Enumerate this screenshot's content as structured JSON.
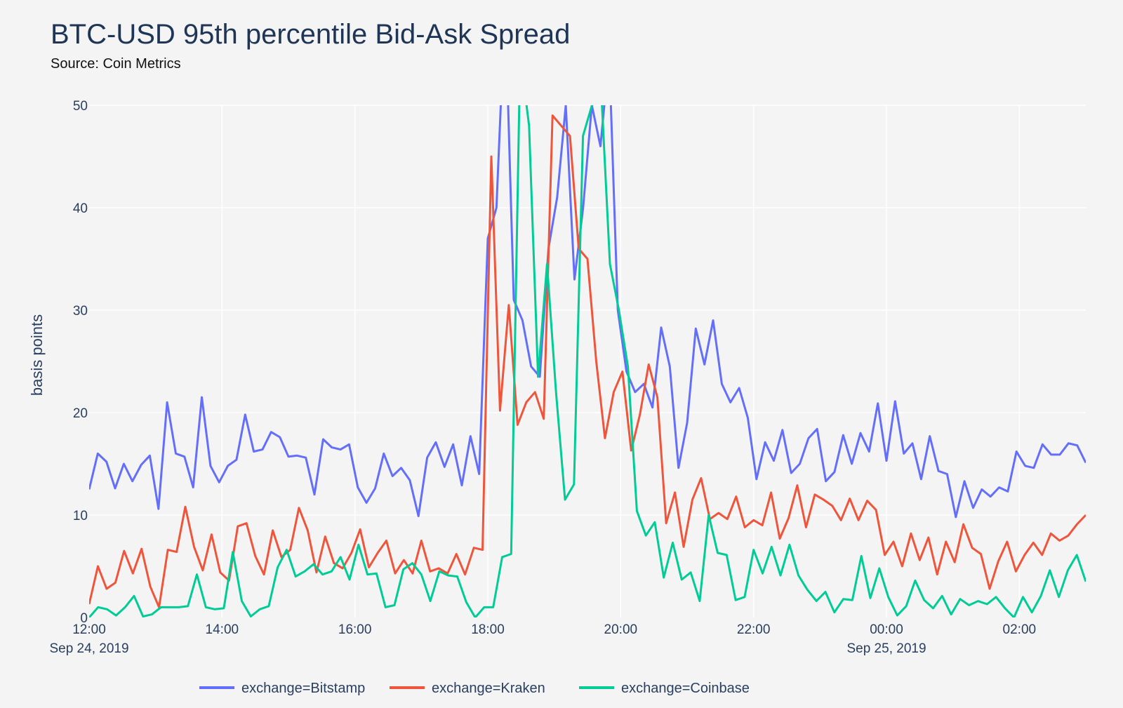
{
  "chart_data": {
    "type": "line",
    "title": "BTC-USD 95th percentile Bid-Ask Spread",
    "subtitle": "Source: Coin Metrics",
    "xlabel": "",
    "ylabel": "basis points",
    "x_start": "2019-09-24 12:00",
    "x_end": "2019-09-25 03:00",
    "x_step": "10min",
    "ylim": [
      0,
      50
    ],
    "y_ticks": [
      "0",
      "10",
      "20",
      "30",
      "40",
      "50"
    ],
    "x_ticks": [
      {
        "label": "12:00",
        "date": "Sep 24, 2019",
        "x": "2019-09-24 12:00"
      },
      {
        "label": "14:00",
        "date": "",
        "x": "2019-09-24 14:00"
      },
      {
        "label": "16:00",
        "date": "",
        "x": "2019-09-24 16:00"
      },
      {
        "label": "18:00",
        "date": "",
        "x": "2019-09-24 18:00"
      },
      {
        "label": "20:00",
        "date": "",
        "x": "2019-09-24 20:00"
      },
      {
        "label": "22:00",
        "date": "",
        "x": "2019-09-24 22:00"
      },
      {
        "label": "00:00",
        "date": "Sep 25, 2019",
        "x": "2019-09-25 00:00"
      },
      {
        "label": "02:00",
        "date": "",
        "x": "2019-09-25 02:00"
      }
    ],
    "grid": true,
    "legend_position": "bottom",
    "series": [
      {
        "name": "exchange=Bitstamp",
        "color": "#636efa",
        "values": [
          12.5,
          16.0,
          15.2,
          12.6,
          15.0,
          13.3,
          14.9,
          15.8,
          10.6,
          21.0,
          16.0,
          15.7,
          12.7,
          21.5,
          14.8,
          13.2,
          14.8,
          15.4,
          19.8,
          16.2,
          16.4,
          18.1,
          17.6,
          15.7,
          15.8,
          15.6,
          12.0,
          17.4,
          16.6,
          16.4,
          16.9,
          12.7,
          11.2,
          12.6,
          16.0,
          13.8,
          14.6,
          13.4,
          9.9,
          15.6,
          17.1,
          14.7,
          16.9,
          12.9,
          17.7,
          14.0,
          37.0,
          40.0,
          60.0,
          31.0,
          29.0,
          24.5,
          23.5,
          36.0,
          41.0,
          50.0,
          33.0,
          40.0,
          50.0,
          46.0,
          55.0,
          30.0,
          24.0,
          22.0,
          22.8,
          20.5,
          28.3,
          24.5,
          14.6,
          19.0,
          28.2,
          24.7,
          29.0,
          22.8,
          21.0,
          22.4,
          19.5,
          13.5,
          17.1,
          15.3,
          18.3,
          14.1,
          15.0,
          17.5,
          18.4,
          13.3,
          14.2,
          17.8,
          15.0,
          18.0,
          16.2,
          20.9,
          15.3,
          21.1,
          16.0,
          17.0,
          13.5,
          17.7,
          14.3,
          14.0,
          9.8,
          13.3,
          10.7,
          12.5,
          11.8,
          12.7,
          12.3,
          16.2,
          14.8,
          14.6,
          16.9,
          15.9,
          15.9,
          17.0,
          16.8,
          15.1
        ]
      },
      {
        "name": "exchange=Kraken",
        "color": "#ef553b",
        "values": [
          1.3,
          5.0,
          2.8,
          3.4,
          6.5,
          4.3,
          6.7,
          3.0,
          1.0,
          6.6,
          6.4,
          10.8,
          6.9,
          4.6,
          8.1,
          4.4,
          3.6,
          8.9,
          9.2,
          6.0,
          4.2,
          8.5,
          5.9,
          6.6,
          10.7,
          8.5,
          4.4,
          7.9,
          5.3,
          4.8,
          6.3,
          8.6,
          4.9,
          6.3,
          7.5,
          4.3,
          5.6,
          4.3,
          7.5,
          4.5,
          4.8,
          4.3,
          6.2,
          4.2,
          6.8,
          6.6,
          45.0,
          20.2,
          30.5,
          18.8,
          21.0,
          22.0,
          19.4,
          49.0,
          48.0,
          47.0,
          36.0,
          35.0,
          25.0,
          17.5,
          22.0,
          24.0,
          16.3,
          19.8,
          24.7,
          21.5,
          9.2,
          12.2,
          6.9,
          11.5,
          13.6,
          9.6,
          10.2,
          9.6,
          11.8,
          8.8,
          9.5,
          9.0,
          12.2,
          7.7,
          9.7,
          12.9,
          8.8,
          12.0,
          11.5,
          10.9,
          9.5,
          11.6,
          9.5,
          11.4,
          10.5,
          6.1,
          7.4,
          5.0,
          8.2,
          5.6,
          7.8,
          4.2,
          7.4,
          5.4,
          9.1,
          6.8,
          6.2,
          2.8,
          5.5,
          7.4,
          4.5,
          6.1,
          7.3,
          6.1,
          8.2,
          7.5,
          8.0,
          9.1,
          10.0
        ]
      },
      {
        "name": "exchange=Coinbase",
        "color": "#00cc96",
        "values": [
          0.0,
          1.0,
          0.8,
          0.2,
          1.0,
          2.1,
          0.1,
          0.3,
          1.0,
          1.0,
          1.0,
          1.1,
          4.2,
          1.0,
          0.8,
          0.9,
          6.4,
          1.6,
          0.1,
          0.8,
          1.1,
          4.9,
          6.6,
          4.0,
          4.5,
          5.2,
          4.2,
          4.5,
          5.9,
          3.7,
          7.1,
          4.2,
          4.3,
          1.0,
          1.2,
          4.7,
          5.3,
          4.2,
          1.6,
          4.5,
          4.1,
          4.0,
          1.5,
          0.0,
          1.0,
          1.0,
          5.9,
          6.2,
          55.0,
          48.0,
          23.5,
          34.5,
          22.0,
          11.5,
          13.0,
          47.0,
          50.0,
          52.0,
          34.5,
          30.0,
          24.5,
          10.4,
          8.0,
          9.3,
          3.9,
          7.3,
          3.7,
          4.4,
          1.6,
          10.0,
          6.3,
          6.1,
          1.7,
          2.0,
          6.6,
          4.3,
          6.9,
          4.1,
          7.1,
          4.1,
          2.7,
          1.6,
          2.5,
          0.5,
          1.8,
          1.7,
          6.0,
          1.9,
          4.8,
          2.0,
          0.2,
          1.1,
          3.6,
          1.7,
          0.9,
          2.1,
          0.3,
          1.8,
          1.2,
          1.6,
          1.3,
          2.0,
          0.9,
          0.0,
          2.0,
          0.5,
          2.1,
          4.6,
          2.0,
          4.6,
          6.1,
          3.5
        ]
      }
    ]
  }
}
